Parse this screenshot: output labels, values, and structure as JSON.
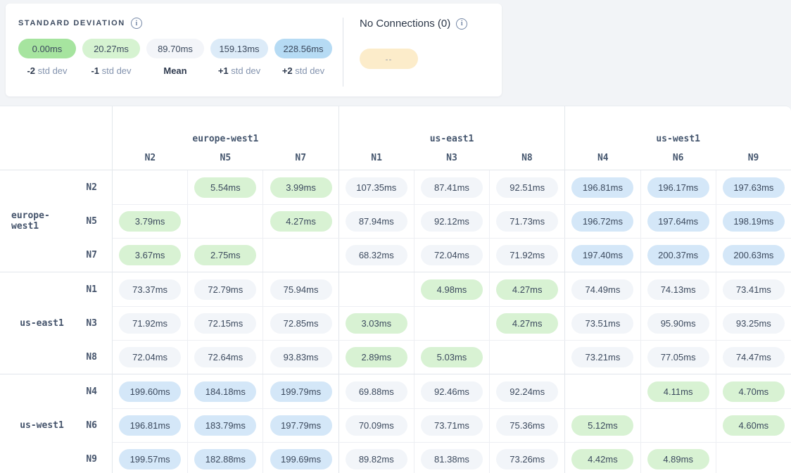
{
  "legend": {
    "title": "STANDARD DEVIATION",
    "stops": [
      {
        "value": "0.00ms",
        "label_strong": "-2",
        "label_rest": "std dev",
        "color": "#a6e49f"
      },
      {
        "value": "20.27ms",
        "label_strong": "-1",
        "label_rest": "std dev",
        "color": "#d6f3d1"
      },
      {
        "value": "89.70ms",
        "label_strong": "Mean",
        "label_rest": "",
        "color": "#f3f5f9"
      },
      {
        "value": "159.13ms",
        "label_strong": "+1",
        "label_rest": "std dev",
        "color": "#dcebf8"
      },
      {
        "value": "228.56ms",
        "label_strong": "+2",
        "label_rest": "std dev",
        "color": "#b6dbf4"
      }
    ]
  },
  "no_connections": {
    "title": "No Connections (0)",
    "pill_text": "--",
    "pill_color": "#fcecca"
  },
  "matrix": {
    "groups": [
      {
        "region": "europe-west1",
        "nodes": [
          "N2",
          "N5",
          "N7"
        ]
      },
      {
        "region": "us-east1",
        "nodes": [
          "N1",
          "N3",
          "N8"
        ]
      },
      {
        "region": "us-west1",
        "nodes": [
          "N4",
          "N6",
          "N9"
        ]
      }
    ],
    "rows": [
      {
        "region": "europe-west1",
        "node": "N2",
        "cells": [
          null,
          {
            "v": "5.54ms",
            "lvl": "green"
          },
          {
            "v": "3.99ms",
            "lvl": "green"
          },
          {
            "v": "107.35ms",
            "lvl": "grey"
          },
          {
            "v": "87.41ms",
            "lvl": "grey"
          },
          {
            "v": "92.51ms",
            "lvl": "grey"
          },
          {
            "v": "196.81ms",
            "lvl": "blue"
          },
          {
            "v": "196.17ms",
            "lvl": "blue"
          },
          {
            "v": "197.63ms",
            "lvl": "blue"
          }
        ]
      },
      {
        "region": "europe-west1",
        "node": "N5",
        "cells": [
          {
            "v": "3.79ms",
            "lvl": "green"
          },
          null,
          {
            "v": "4.27ms",
            "lvl": "green"
          },
          {
            "v": "87.94ms",
            "lvl": "grey"
          },
          {
            "v": "92.12ms",
            "lvl": "grey"
          },
          {
            "v": "71.73ms",
            "lvl": "grey"
          },
          {
            "v": "196.72ms",
            "lvl": "blue"
          },
          {
            "v": "197.64ms",
            "lvl": "blue"
          },
          {
            "v": "198.19ms",
            "lvl": "blue"
          }
        ]
      },
      {
        "region": "europe-west1",
        "node": "N7",
        "cells": [
          {
            "v": "3.67ms",
            "lvl": "green"
          },
          {
            "v": "2.75ms",
            "lvl": "green"
          },
          null,
          {
            "v": "68.32ms",
            "lvl": "grey"
          },
          {
            "v": "72.04ms",
            "lvl": "grey"
          },
          {
            "v": "71.92ms",
            "lvl": "grey"
          },
          {
            "v": "197.40ms",
            "lvl": "blue"
          },
          {
            "v": "200.37ms",
            "lvl": "blue"
          },
          {
            "v": "200.63ms",
            "lvl": "blue"
          }
        ]
      },
      {
        "region": "us-east1",
        "node": "N1",
        "cells": [
          {
            "v": "73.37ms",
            "lvl": "grey"
          },
          {
            "v": "72.79ms",
            "lvl": "grey"
          },
          {
            "v": "75.94ms",
            "lvl": "grey"
          },
          null,
          {
            "v": "4.98ms",
            "lvl": "green"
          },
          {
            "v": "4.27ms",
            "lvl": "green"
          },
          {
            "v": "74.49ms",
            "lvl": "grey"
          },
          {
            "v": "74.13ms",
            "lvl": "grey"
          },
          {
            "v": "73.41ms",
            "lvl": "grey"
          }
        ]
      },
      {
        "region": "us-east1",
        "node": "N3",
        "cells": [
          {
            "v": "71.92ms",
            "lvl": "grey"
          },
          {
            "v": "72.15ms",
            "lvl": "grey"
          },
          {
            "v": "72.85ms",
            "lvl": "grey"
          },
          {
            "v": "3.03ms",
            "lvl": "green"
          },
          null,
          {
            "v": "4.27ms",
            "lvl": "green"
          },
          {
            "v": "73.51ms",
            "lvl": "grey"
          },
          {
            "v": "95.90ms",
            "lvl": "grey"
          },
          {
            "v": "93.25ms",
            "lvl": "grey"
          }
        ]
      },
      {
        "region": "us-east1",
        "node": "N8",
        "cells": [
          {
            "v": "72.04ms",
            "lvl": "grey"
          },
          {
            "v": "72.64ms",
            "lvl": "grey"
          },
          {
            "v": "93.83ms",
            "lvl": "grey"
          },
          {
            "v": "2.89ms",
            "lvl": "green"
          },
          {
            "v": "5.03ms",
            "lvl": "green"
          },
          null,
          {
            "v": "73.21ms",
            "lvl": "grey"
          },
          {
            "v": "77.05ms",
            "lvl": "grey"
          },
          {
            "v": "74.47ms",
            "lvl": "grey"
          }
        ]
      },
      {
        "region": "us-west1",
        "node": "N4",
        "cells": [
          {
            "v": "199.60ms",
            "lvl": "blue"
          },
          {
            "v": "184.18ms",
            "lvl": "blue"
          },
          {
            "v": "199.79ms",
            "lvl": "blue"
          },
          {
            "v": "69.88ms",
            "lvl": "grey"
          },
          {
            "v": "92.46ms",
            "lvl": "grey"
          },
          {
            "v": "92.24ms",
            "lvl": "grey"
          },
          null,
          {
            "v": "4.11ms",
            "lvl": "green"
          },
          {
            "v": "4.70ms",
            "lvl": "green"
          }
        ]
      },
      {
        "region": "us-west1",
        "node": "N6",
        "cells": [
          {
            "v": "196.81ms",
            "lvl": "blue"
          },
          {
            "v": "183.79ms",
            "lvl": "blue"
          },
          {
            "v": "197.79ms",
            "lvl": "blue"
          },
          {
            "v": "70.09ms",
            "lvl": "grey"
          },
          {
            "v": "73.71ms",
            "lvl": "grey"
          },
          {
            "v": "75.36ms",
            "lvl": "grey"
          },
          {
            "v": "5.12ms",
            "lvl": "green"
          },
          null,
          {
            "v": "4.60ms",
            "lvl": "green"
          }
        ]
      },
      {
        "region": "us-west1",
        "node": "N9",
        "cells": [
          {
            "v": "199.57ms",
            "lvl": "blue"
          },
          {
            "v": "182.88ms",
            "lvl": "blue"
          },
          {
            "v": "199.69ms",
            "lvl": "blue"
          },
          {
            "v": "89.82ms",
            "lvl": "grey"
          },
          {
            "v": "81.38ms",
            "lvl": "grey"
          },
          {
            "v": "73.26ms",
            "lvl": "grey"
          },
          {
            "v": "4.42ms",
            "lvl": "green"
          },
          {
            "v": "4.89ms",
            "lvl": "green"
          },
          null
        ]
      }
    ]
  },
  "colors": {
    "page_bg": "#f2f4f7",
    "green": "#d8f2d3",
    "grey": "#f2f5f9",
    "blue": "#d4e7f8",
    "no_connection": "#fcecca"
  }
}
